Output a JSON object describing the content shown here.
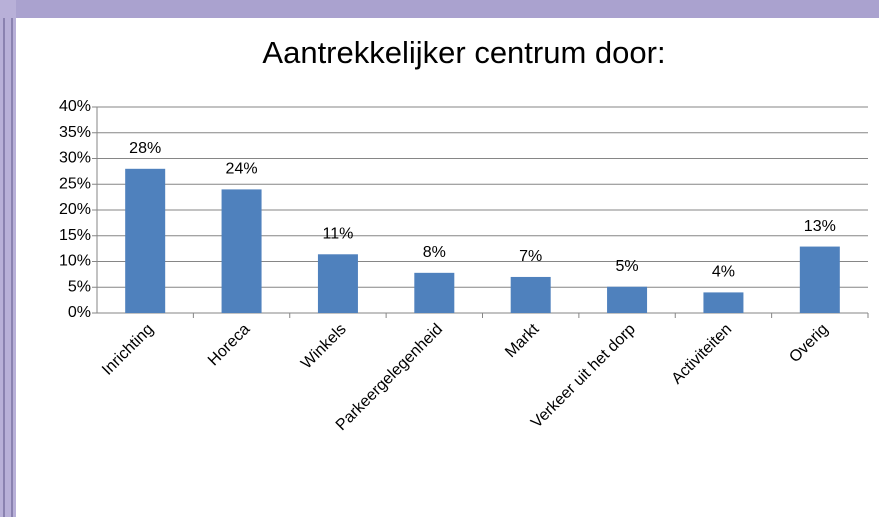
{
  "chart_data": {
    "type": "bar",
    "title": "Aantrekkelijker centrum door:",
    "categories": [
      "Inrichting",
      "Horeca",
      "Winkels",
      "Parkeergelegenheid",
      "Markt",
      "Verkeer uit het dorp",
      "Activiteiten",
      "Overig"
    ],
    "values": [
      28,
      24,
      11.4,
      7.8,
      7,
      5.1,
      4,
      12.9
    ],
    "value_labels": [
      "28%",
      "24%",
      "11%",
      "8%",
      "7%",
      "5%",
      "4%",
      "13%"
    ],
    "color": "#4f81bd",
    "ylim": [
      0,
      40
    ],
    "yticks": [
      {
        "value": 0,
        "label": "0%"
      },
      {
        "value": 5,
        "label": "5%"
      },
      {
        "value": 10,
        "label": "10%"
      },
      {
        "value": 15,
        "label": "15%"
      },
      {
        "value": 20,
        "label": "20%"
      },
      {
        "value": 25,
        "label": "25%"
      },
      {
        "value": 30,
        "label": "30%"
      },
      {
        "value": 35,
        "label": "35%"
      },
      {
        "value": 40,
        "label": "40%"
      }
    ],
    "grid": true
  }
}
